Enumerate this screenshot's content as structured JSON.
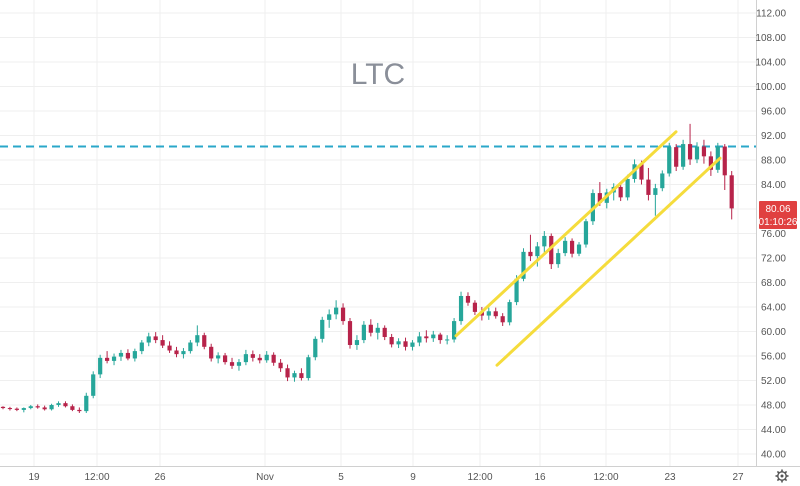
{
  "chart_data": {
    "type": "candlestick",
    "title": "LTC",
    "y_axis": {
      "position": "right",
      "ticks": [
        "112.00",
        "108.00",
        "104.00",
        "100.00",
        "96.00",
        "92.00",
        "88.00",
        "84.00",
        "80.00",
        "76.00",
        "72.00",
        "68.00",
        "64.00",
        "60.00",
        "56.00",
        "52.00",
        "48.00",
        "44.00",
        "40.00"
      ],
      "range": [
        38.5,
        113.5
      ]
    },
    "x_axis": {
      "ticks": [
        "19",
        "12:00",
        "26",
        "Nov",
        "5",
        "9",
        "12:00",
        "16",
        "12:00",
        "23",
        "27"
      ]
    },
    "price_badge": {
      "value": "80.06",
      "countdown": "01:10:26",
      "color": "#e04040"
    },
    "horizontal_line": {
      "value": 90.2,
      "color": "#2aa7c9",
      "style": "dashed"
    },
    "channel": {
      "color": "#f5dc3c",
      "upper_line": [
        [
          456,
          59.3
        ],
        [
          676,
          92.6
        ]
      ],
      "lower_line": [
        [
          497,
          54.5
        ],
        [
          720,
          88.3
        ]
      ]
    },
    "candle_colors": {
      "up": "#26a69a",
      "down": "#b7234a"
    },
    "candles": [
      [
        47.7,
        47.8,
        47.3,
        47.5
      ],
      [
        47.5,
        47.7,
        47.1,
        47.4
      ],
      [
        47.4,
        47.6,
        47.0,
        47.2
      ],
      [
        47.2,
        47.6,
        46.8,
        47.5
      ],
      [
        47.5,
        48.0,
        47.3,
        47.8
      ],
      [
        47.8,
        48.1,
        47.4,
        47.6
      ],
      [
        47.6,
        47.9,
        47.1,
        47.3
      ],
      [
        47.3,
        48.2,
        47.1,
        48.0
      ],
      [
        48.0,
        48.6,
        47.7,
        48.3
      ],
      [
        48.3,
        48.6,
        47.6,
        47.8
      ],
      [
        47.8,
        48.1,
        47.0,
        47.2
      ],
      [
        47.2,
        47.6,
        46.7,
        47.0
      ],
      [
        47.0,
        50.0,
        46.7,
        49.5
      ],
      [
        49.5,
        53.5,
        49.1,
        53.0
      ],
      [
        53.0,
        56.2,
        52.4,
        55.7
      ],
      [
        55.7,
        56.8,
        54.8,
        55.2
      ],
      [
        55.2,
        56.4,
        54.5,
        55.9
      ],
      [
        55.9,
        57.0,
        55.2,
        56.5
      ],
      [
        56.5,
        57.1,
        55.3,
        55.6
      ],
      [
        55.6,
        57.2,
        55.1,
        56.8
      ],
      [
        56.8,
        58.6,
        56.3,
        58.2
      ],
      [
        58.2,
        59.8,
        57.6,
        59.2
      ],
      [
        59.2,
        59.9,
        58.1,
        58.6
      ],
      [
        58.6,
        59.4,
        57.3,
        57.7
      ],
      [
        57.7,
        58.4,
        56.5,
        56.9
      ],
      [
        56.9,
        57.5,
        55.8,
        56.3
      ],
      [
        56.3,
        57.3,
        55.6,
        56.8
      ],
      [
        56.8,
        58.6,
        56.4,
        58.2
      ],
      [
        58.2,
        61.0,
        57.6,
        59.4
      ],
      [
        59.4,
        59.8,
        57.1,
        57.5
      ],
      [
        57.5,
        58.0,
        55.1,
        55.6
      ],
      [
        55.6,
        56.6,
        54.8,
        56.1
      ],
      [
        56.1,
        56.5,
        54.6,
        55.0
      ],
      [
        55.0,
        55.7,
        53.9,
        54.4
      ],
      [
        54.4,
        55.5,
        53.6,
        55.0
      ],
      [
        55.0,
        57.0,
        54.5,
        56.3
      ],
      [
        56.3,
        56.9,
        55.1,
        55.7
      ],
      [
        55.7,
        56.3,
        54.8,
        55.3
      ],
      [
        55.3,
        56.8,
        54.9,
        56.2
      ],
      [
        56.2,
        56.6,
        54.4,
        54.9
      ],
      [
        54.9,
        55.5,
        53.4,
        54.0
      ],
      [
        54.0,
        54.6,
        51.9,
        52.5
      ],
      [
        52.5,
        53.6,
        51.8,
        53.2
      ],
      [
        53.2,
        54.0,
        52.0,
        52.4
      ],
      [
        52.4,
        56.2,
        52.0,
        55.8
      ],
      [
        55.8,
        59.2,
        55.3,
        58.8
      ],
      [
        58.8,
        62.4,
        58.2,
        61.9
      ],
      [
        61.9,
        63.6,
        60.6,
        62.8
      ],
      [
        62.8,
        65.1,
        62.0,
        63.9
      ],
      [
        63.9,
        64.6,
        61.1,
        61.7
      ],
      [
        61.7,
        62.2,
        57.2,
        57.8
      ],
      [
        57.8,
        59.4,
        57.0,
        58.6
      ],
      [
        58.6,
        61.7,
        58.1,
        61.1
      ],
      [
        61.1,
        62.0,
        59.2,
        59.8
      ],
      [
        59.8,
        61.4,
        58.7,
        60.6
      ],
      [
        60.6,
        61.0,
        58.6,
        59.1
      ],
      [
        59.1,
        59.6,
        57.4,
        57.9
      ],
      [
        57.9,
        58.9,
        57.3,
        58.4
      ],
      [
        58.4,
        59.0,
        56.9,
        57.5
      ],
      [
        57.5,
        58.6,
        56.9,
        58.2
      ],
      [
        58.2,
        59.9,
        57.6,
        59.2
      ],
      [
        59.2,
        60.2,
        58.2,
        58.9
      ],
      [
        58.9,
        60.1,
        58.3,
        59.5
      ],
      [
        59.5,
        59.8,
        58.0,
        58.6
      ],
      [
        58.6,
        59.4,
        57.9,
        58.7
      ],
      [
        58.7,
        62.2,
        58.2,
        61.7
      ],
      [
        61.7,
        66.5,
        61.1,
        65.8
      ],
      [
        65.8,
        66.4,
        64.2,
        64.7
      ],
      [
        64.7,
        65.1,
        62.7,
        63.2
      ],
      [
        63.2,
        64.0,
        61.8,
        62.6
      ],
      [
        62.6,
        63.9,
        61.9,
        63.3
      ],
      [
        63.3,
        63.9,
        62.1,
        62.5
      ],
      [
        62.5,
        63.0,
        60.9,
        61.5
      ],
      [
        61.5,
        65.2,
        61.0,
        64.8
      ],
      [
        64.8,
        69.2,
        64.3,
        68.6
      ],
      [
        68.6,
        73.6,
        68.2,
        73.0
      ],
      [
        73.0,
        75.8,
        71.5,
        72.3
      ],
      [
        72.3,
        74.6,
        70.6,
        73.9
      ],
      [
        73.9,
        76.4,
        72.9,
        75.6
      ],
      [
        75.6,
        76.0,
        70.2,
        71.0
      ],
      [
        71.0,
        73.5,
        70.4,
        72.8
      ],
      [
        72.8,
        75.4,
        72.3,
        74.8
      ],
      [
        74.8,
        75.2,
        72.1,
        72.7
      ],
      [
        72.7,
        74.6,
        72.3,
        74.2
      ],
      [
        74.2,
        78.4,
        73.7,
        78.0
      ],
      [
        78.0,
        83.2,
        77.4,
        82.6
      ],
      [
        82.6,
        84.4,
        80.5,
        81.0
      ],
      [
        81.0,
        83.3,
        80.1,
        82.7
      ],
      [
        82.7,
        84.2,
        81.4,
        83.6
      ],
      [
        83.6,
        84.3,
        81.3,
        81.9
      ],
      [
        81.9,
        85.6,
        81.4,
        84.9
      ],
      [
        84.9,
        88.1,
        84.3,
        87.3
      ],
      [
        87.3,
        87.9,
        84.0,
        84.8
      ],
      [
        84.8,
        86.7,
        81.4,
        82.3
      ],
      [
        82.3,
        84.1,
        78.9,
        83.4
      ],
      [
        83.4,
        86.3,
        82.9,
        85.8
      ],
      [
        85.8,
        90.8,
        85.3,
        90.1
      ],
      [
        90.1,
        90.6,
        86.2,
        86.9
      ],
      [
        86.9,
        91.3,
        86.4,
        90.6
      ],
      [
        90.6,
        93.9,
        87.2,
        88.1
      ],
      [
        88.1,
        90.9,
        87.5,
        90.2
      ],
      [
        90.2,
        91.3,
        87.4,
        88.6
      ],
      [
        88.6,
        89.4,
        85.4,
        86.4
      ],
      [
        86.4,
        90.8,
        85.9,
        90.2
      ],
      [
        90.2,
        90.6,
        83.1,
        85.5
      ],
      [
        85.5,
        86.2,
        78.3,
        80.1
      ]
    ]
  }
}
